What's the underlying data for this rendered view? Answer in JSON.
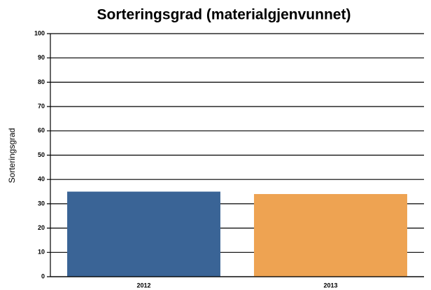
{
  "chart_data": {
    "type": "bar",
    "title": "Sorteringsgrad (materialgjenvunnet)",
    "y_label": "Sorteringsgrad",
    "categories": [
      "2012",
      "2013"
    ],
    "values": [
      35,
      34
    ],
    "colors": [
      "#3a6496",
      "#eea352"
    ],
    "ylim": [
      0,
      100
    ],
    "yticks": [
      0,
      10,
      20,
      30,
      40,
      50,
      60,
      70,
      80,
      90,
      100
    ],
    "grid": true
  }
}
